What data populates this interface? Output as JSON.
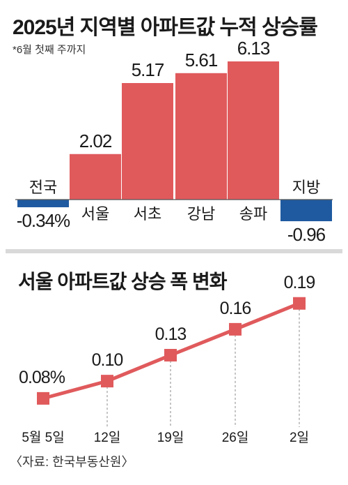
{
  "chart_data": [
    {
      "type": "bar",
      "title": "2025년 지역별 아파트값 누적 상승률",
      "subtitle": "*6월 첫째 주까지",
      "categories": [
        "전국",
        "서울",
        "서초",
        "강남",
        "송파",
        "지방"
      ],
      "values": [
        -0.34,
        2.02,
        5.17,
        5.61,
        6.13,
        -0.96
      ],
      "value_labels": [
        "-0.34%",
        "2.02",
        "5.17",
        "5.61",
        "6.13",
        "-0.96"
      ],
      "ylim": [
        -1.2,
        6.6
      ],
      "grid": false,
      "colors": {
        "positive": "#e05a5c",
        "negative": "#1f5aa0"
      }
    },
    {
      "type": "line",
      "title": "서울 아파트값 상승 폭 변화",
      "categories": [
        "5월 5일",
        "12일",
        "19일",
        "26일",
        "2일"
      ],
      "values": [
        0.08,
        0.1,
        0.13,
        0.16,
        0.19
      ],
      "value_labels": [
        "0.08%",
        "0.10",
        "0.13",
        "0.16",
        "0.19"
      ],
      "ylim": [
        0.05,
        0.21
      ],
      "grid": false,
      "colors": {
        "line": "#e05a5c",
        "marker": "#e05a5c"
      }
    }
  ],
  "source": "〈자료: 한국부동산원〉"
}
